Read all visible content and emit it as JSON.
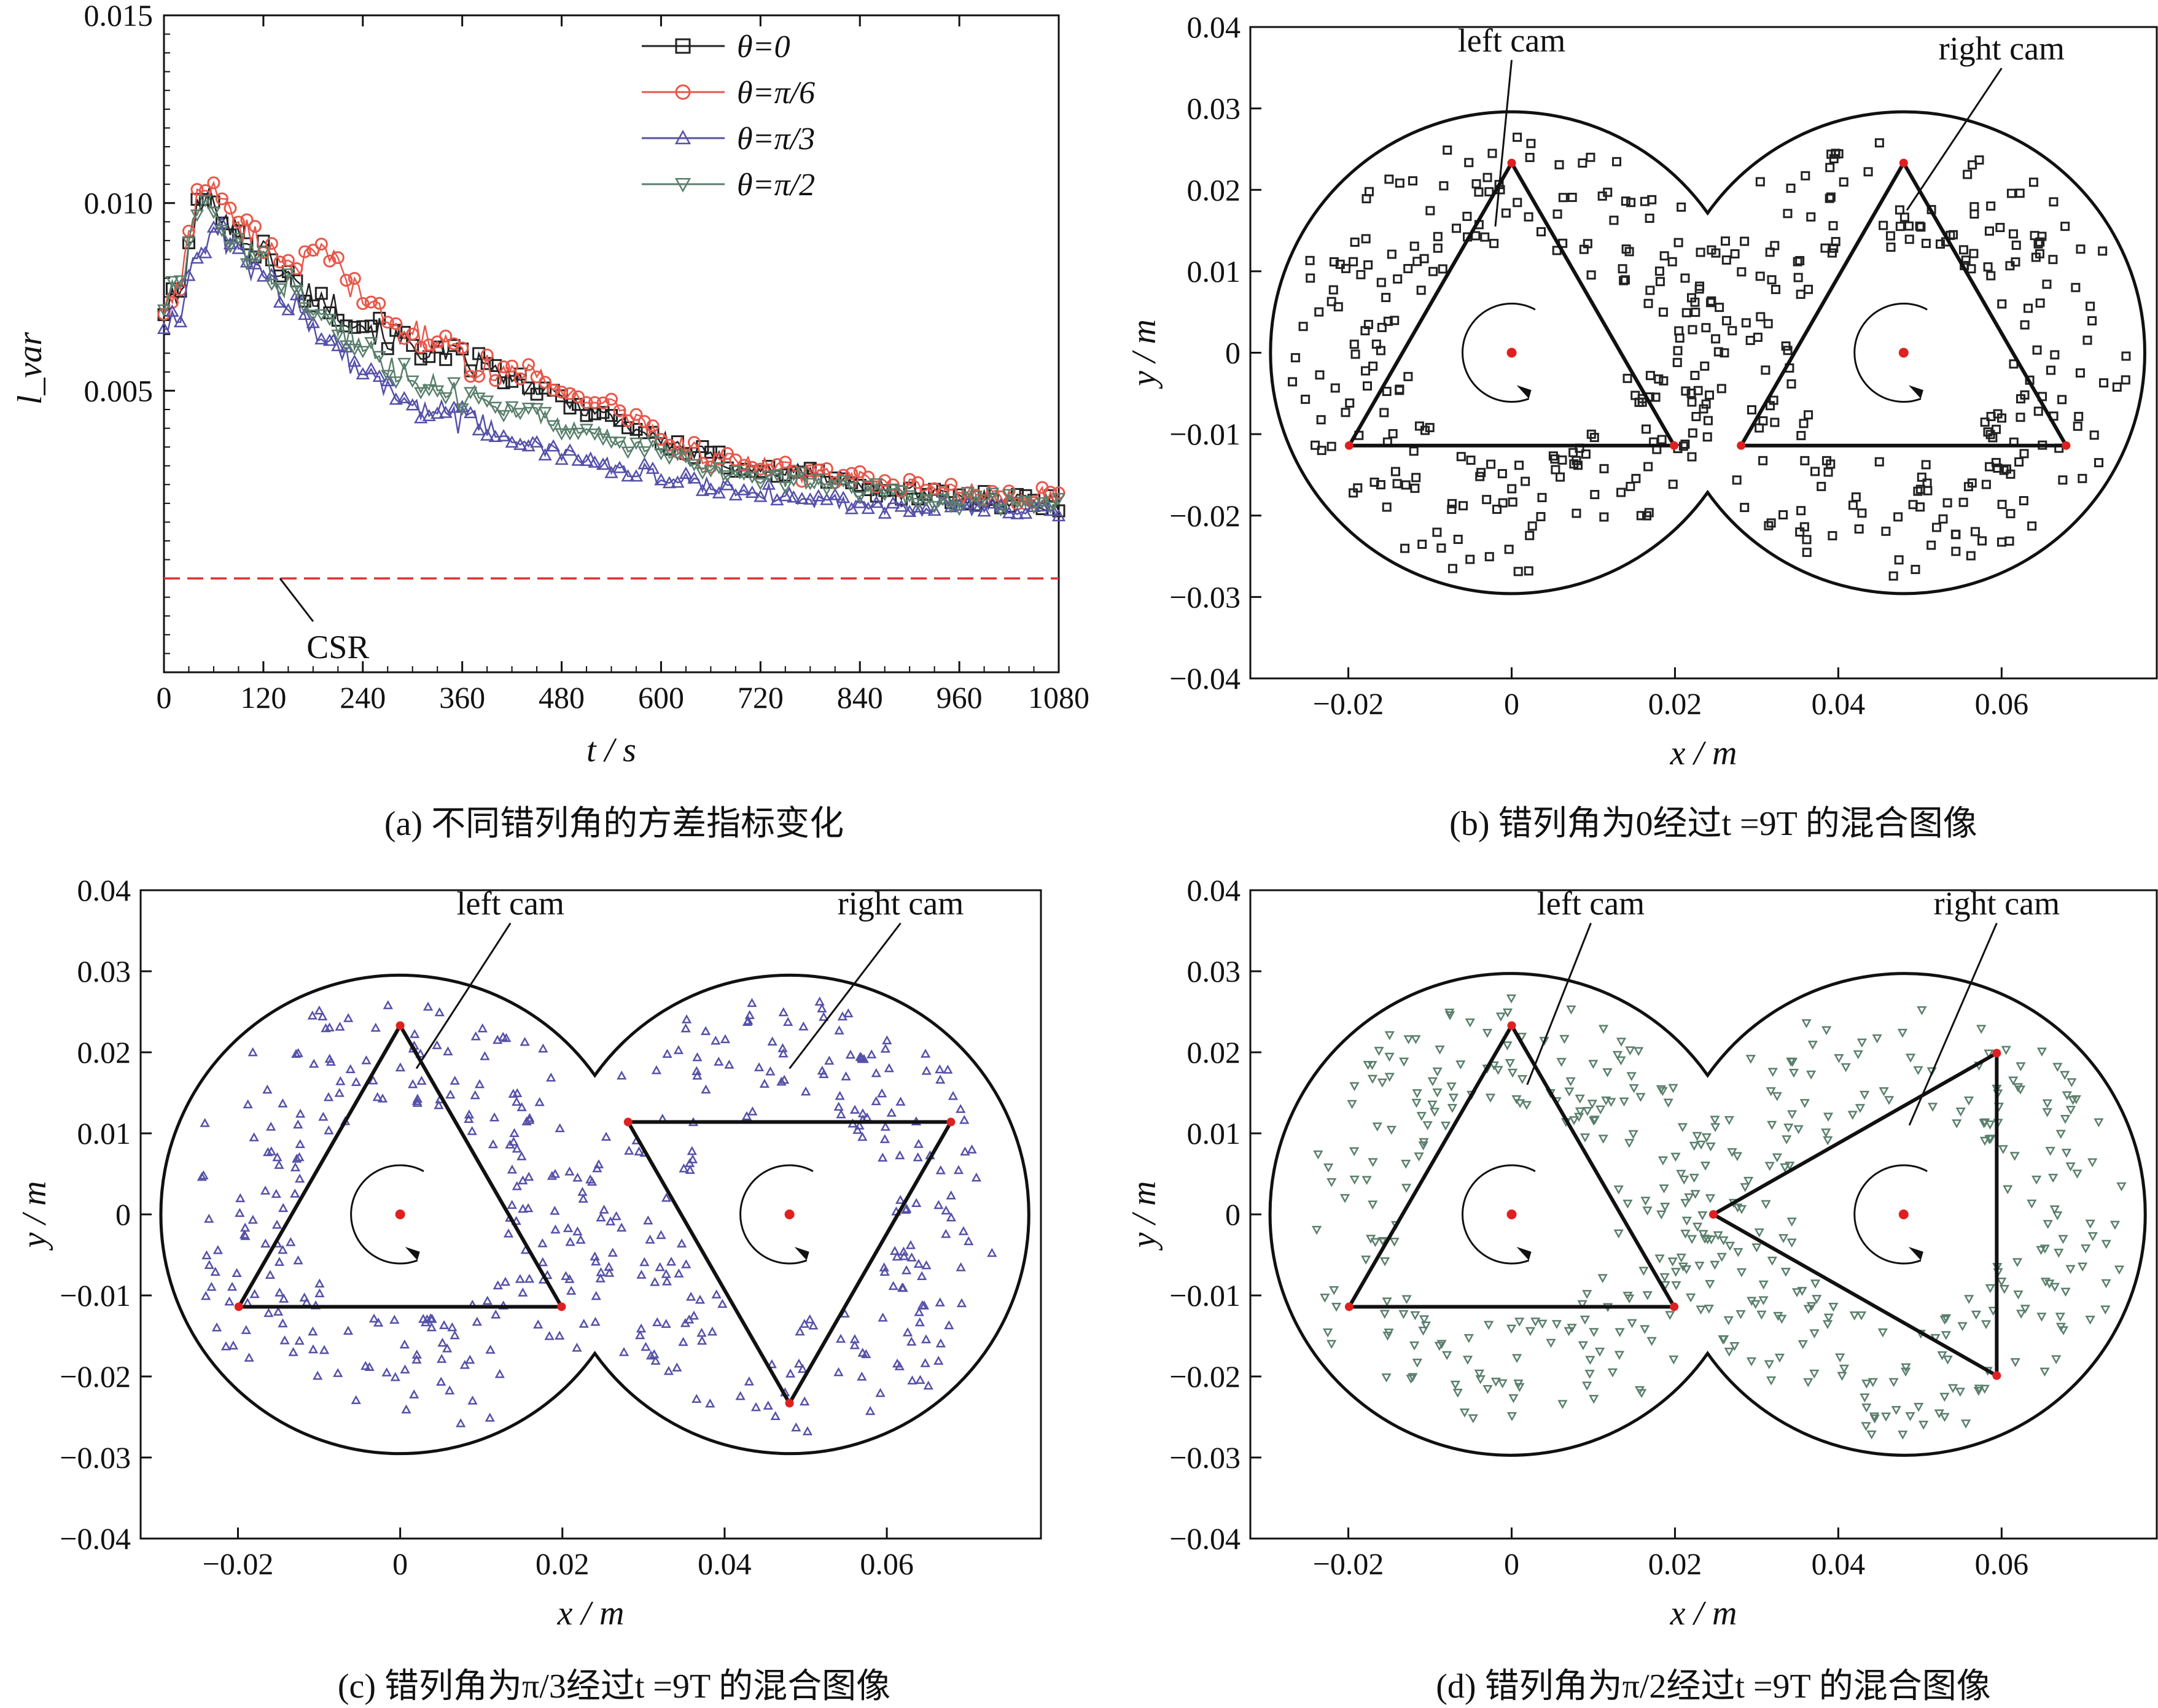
{
  "figure": {
    "captions": [
      "(a) 不同错列角的方差指标变化",
      "(b) 错列角为0经过t =9T 的混合图像",
      "(c) 错列角为π/3经过t =9T 的混合图像",
      "(d) 错列角为π/2经过t =9T 的混合图像"
    ]
  },
  "colors": {
    "theta_0": "#222222",
    "theta_pi6": "#e8574a",
    "theta_pi3": "#5550a8",
    "theta_pi2": "#5a7f6c",
    "csr": "#e03030",
    "pivot": "#e02020",
    "cam_outline": "#111111"
  },
  "chart_data": [
    {
      "id": "a",
      "type": "line",
      "caption": "(a) 不同错列角的方差指标变化",
      "xlabel": "t / s",
      "ylabel": "l_var",
      "xlim": [
        0,
        1080
      ],
      "ylim": [
        -0.0025,
        0.015
      ],
      "xticks": [
        "0",
        "120",
        "240",
        "360",
        "480",
        "600",
        "720",
        "840",
        "960",
        "1080"
      ],
      "yticks": [
        "0.005",
        "0.010",
        "0.015"
      ],
      "legend": {
        "position": "top-center"
      },
      "grid": false,
      "series": [
        {
          "name": "θ=0",
          "marker": "square",
          "color": "#222222",
          "x": [
            0,
            20,
            40,
            60,
            80,
            120,
            160,
            200,
            240,
            280,
            320,
            360,
            400,
            440,
            480,
            540,
            600,
            660,
            720,
            780,
            840,
            900,
            960,
            1020,
            1080
          ],
          "y": [
            0.0072,
            0.0075,
            0.0098,
            0.0102,
            0.0094,
            0.0087,
            0.0078,
            0.0073,
            0.0068,
            0.0063,
            0.0061,
            0.0058,
            0.0055,
            0.0051,
            0.0048,
            0.0043,
            0.0037,
            0.0032,
            0.0029,
            0.0028,
            0.0025,
            0.0023,
            0.0021,
            0.0021,
            0.002
          ]
        },
        {
          "name": "θ=π/6",
          "marker": "circle",
          "color": "#e8574a",
          "x": [
            0,
            20,
            40,
            60,
            80,
            120,
            160,
            200,
            240,
            280,
            320,
            360,
            400,
            440,
            480,
            540,
            600,
            660,
            720,
            780,
            840,
            900,
            960,
            1020,
            1080
          ],
          "y": [
            0.0072,
            0.0078,
            0.0102,
            0.0106,
            0.0096,
            0.0089,
            0.0084,
            0.0086,
            0.0074,
            0.0067,
            0.0064,
            0.0058,
            0.0055,
            0.0055,
            0.005,
            0.0046,
            0.0038,
            0.0032,
            0.003,
            0.0028,
            0.0026,
            0.0024,
            0.0023,
            0.0022,
            0.0022
          ]
        },
        {
          "name": "θ=π/3",
          "marker": "triangle-up",
          "color": "#5550a8",
          "x": [
            0,
            20,
            40,
            60,
            80,
            120,
            160,
            200,
            240,
            280,
            320,
            360,
            400,
            440,
            480,
            540,
            600,
            660,
            720,
            780,
            840,
            900,
            960,
            1020,
            1080
          ],
          "y": [
            0.0068,
            0.0072,
            0.0085,
            0.0093,
            0.0089,
            0.008,
            0.0072,
            0.0064,
            0.0055,
            0.0049,
            0.0045,
            0.0042,
            0.0039,
            0.0036,
            0.0033,
            0.003,
            0.0027,
            0.0025,
            0.0023,
            0.0021,
            0.002,
            0.0019,
            0.0019,
            0.0018,
            0.0018
          ]
        },
        {
          "name": "θ=π/2",
          "marker": "triangle-down",
          "color": "#5a7f6c",
          "x": [
            0,
            20,
            40,
            60,
            80,
            120,
            160,
            200,
            240,
            280,
            320,
            360,
            400,
            440,
            480,
            540,
            600,
            660,
            720,
            780,
            840,
            900,
            960,
            1020,
            1080
          ],
          "y": [
            0.0073,
            0.0078,
            0.0098,
            0.0096,
            0.0091,
            0.0084,
            0.0076,
            0.0069,
            0.0061,
            0.0056,
            0.0052,
            0.0049,
            0.0046,
            0.0044,
            0.0041,
            0.0037,
            0.0034,
            0.0029,
            0.0027,
            0.0026,
            0.0024,
            0.0022,
            0.0021,
            0.002,
            0.002
          ]
        }
      ],
      "reference_line": {
        "label": "CSR",
        "y": 0.0
      }
    },
    {
      "id": "b",
      "type": "scatter",
      "caption": "(b) 错列角为0经过t =9T 的混合图像",
      "xlabel": "x / m",
      "ylabel": "y / m",
      "xlim": [
        -0.032,
        0.079
      ],
      "ylim": [
        -0.04,
        0.04
      ],
      "xticks": [
        "−0.02",
        "0",
        "0.02",
        "0.04",
        "0.06"
      ],
      "yticks": [
        "0.04",
        "0.03",
        "0.02",
        "0.01",
        "0",
        "−0.01",
        "−0.02",
        "−0.03",
        "−0.04"
      ],
      "marker": "square",
      "marker_color": "#222222",
      "barrel": {
        "centers_x": [
          0,
          0.048
        ],
        "radius": 0.0295
      },
      "cams": [
        {
          "label": "left cam",
          "center": [
            0,
            0
          ],
          "vertices": [
            [
              0,
              0.0233
            ],
            [
              -0.0199,
              -0.0114
            ],
            [
              0.0199,
              -0.0114
            ]
          ]
        },
        {
          "label": "right cam",
          "center": [
            0.048,
            0
          ],
          "vertices": [
            [
              0.048,
              0.0233
            ],
            [
              0.0281,
              -0.0114
            ],
            [
              0.0679,
              -0.0114
            ]
          ]
        }
      ],
      "annotations": [
        {
          "text": "left cam",
          "pos": [
            0,
            0.037
          ],
          "points_to": [
            -0.002,
            0.0155
          ]
        },
        {
          "text": "right cam",
          "pos": [
            0.06,
            0.036
          ],
          "points_to": [
            0.0484,
            0.0175
          ]
        }
      ]
    },
    {
      "id": "c",
      "type": "scatter",
      "caption": "(c) 错列角为π/3经过t =9T 的混合图像",
      "xlabel": "x / m",
      "ylabel": "y / m",
      "xlim": [
        -0.032,
        0.079
      ],
      "ylim": [
        -0.04,
        0.04
      ],
      "xticks": [
        "−0.02",
        "0",
        "0.02",
        "0.04",
        "0.06"
      ],
      "yticks": [
        "0.04",
        "0.03",
        "0.02",
        "0.01",
        "0",
        "−0.01",
        "−0.02",
        "−0.03",
        "−0.04"
      ],
      "marker": "triangle-up",
      "marker_color": "#5550a8",
      "barrel": {
        "centers_x": [
          0,
          0.048
        ],
        "radius": 0.0295
      },
      "cams": [
        {
          "label": "left cam",
          "center": [
            0,
            0
          ],
          "vertices": [
            [
              0,
              0.0233
            ],
            [
              -0.0199,
              -0.0114
            ],
            [
              0.0199,
              -0.0114
            ]
          ]
        },
        {
          "label": "right cam",
          "center": [
            0.048,
            0
          ],
          "vertices": [
            [
              0.0281,
              0.0114
            ],
            [
              0.0679,
              0.0114
            ],
            [
              0.048,
              -0.0233
            ]
          ]
        }
      ],
      "annotations": [
        {
          "text": "left cam",
          "pos": [
            0.0136,
            0.037
          ],
          "points_to": [
            0.002,
            0.018
          ]
        },
        {
          "text": "right cam",
          "pos": [
            0.0617,
            0.037
          ],
          "points_to": [
            0.048,
            0.018
          ]
        }
      ]
    },
    {
      "id": "d",
      "type": "scatter",
      "caption": "(d) 错列角为π/2经过t =9T 的混合图像",
      "xlabel": "x / m",
      "ylabel": "y / m",
      "xlim": [
        -0.032,
        0.079
      ],
      "ylim": [
        -0.04,
        0.04
      ],
      "xticks": [
        "−0.02",
        "0",
        "0.02",
        "0.04",
        "0.06"
      ],
      "yticks": [
        "0.04",
        "0.03",
        "0.02",
        "0.01",
        "0",
        "−0.01",
        "−0.02",
        "−0.03",
        "−0.04"
      ],
      "marker": "triangle-down",
      "marker_color": "#5a7f6c",
      "barrel": {
        "centers_x": [
          0,
          0.048
        ],
        "radius": 0.0295
      },
      "cams": [
        {
          "label": "left cam",
          "center": [
            0,
            0
          ],
          "vertices": [
            [
              0,
              0.0233
            ],
            [
              -0.0199,
              -0.0114
            ],
            [
              0.0199,
              -0.0114
            ]
          ]
        },
        {
          "label": "right cam",
          "center": [
            0.048,
            0
          ],
          "vertices": [
            [
              0.0247,
              0.0
            ],
            [
              0.0594,
              0.0199
            ],
            [
              0.0594,
              -0.0199
            ]
          ]
        }
      ],
      "annotations": [
        {
          "text": "left cam",
          "pos": [
            0.0097,
            0.037
          ],
          "points_to": [
            0.0019,
            0.016
          ]
        },
        {
          "text": "right cam",
          "pos": [
            0.0594,
            0.037
          ],
          "points_to": [
            0.0487,
            0.011
          ]
        }
      ]
    }
  ]
}
